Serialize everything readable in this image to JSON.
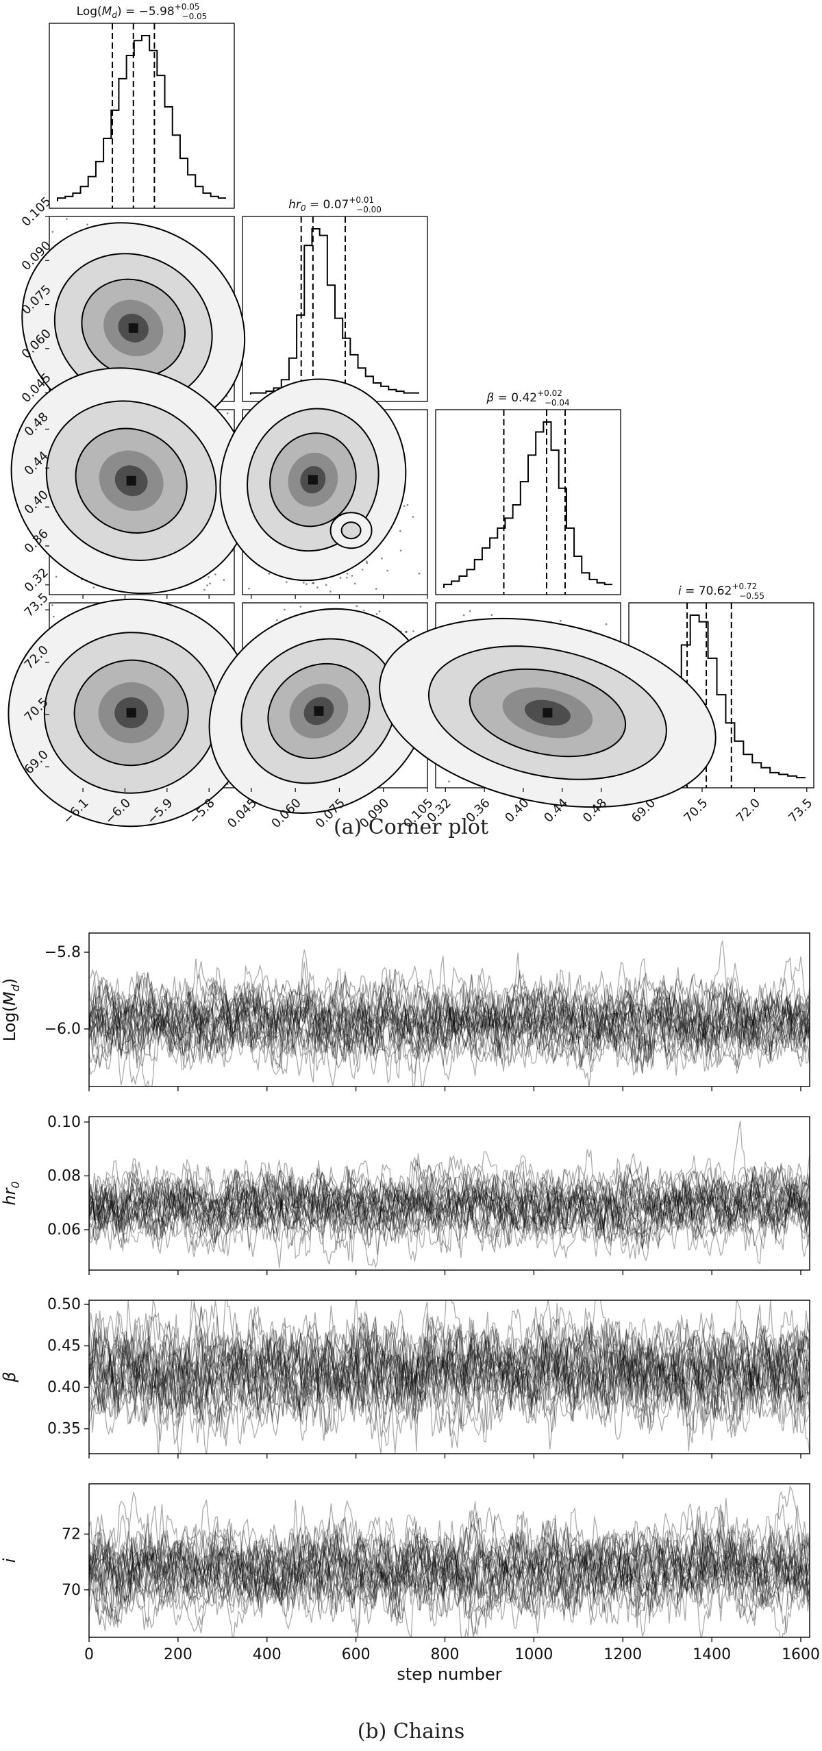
{
  "corner_caption": "(a) Corner plot",
  "chains_caption": "(b) Chains",
  "chart_data": [
    {
      "type": "corner",
      "title": "Corner plot",
      "parameters": [
        {
          "key": "logMd",
          "title_main": "Log(",
          "title_sym": "M",
          "title_sub": "d",
          "title_rest": ") = −5.98",
          "up": "+0.05",
          "down": "−0.05",
          "median": -5.98,
          "q16": -6.03,
          "q84": -5.93,
          "range": [
            -6.18,
            -5.74
          ],
          "ticks": [
            -6.1,
            -6.0,
            -5.9,
            -5.8
          ],
          "tick_labels": [
            "−6.1",
            "−6.0",
            "−5.9",
            "−5.8"
          ],
          "hist": [
            2,
            3,
            5,
            9,
            15,
            24,
            38,
            55,
            74,
            88,
            97,
            100,
            91,
            76,
            57,
            40,
            26,
            16,
            9,
            5,
            3,
            2
          ]
        },
        {
          "key": "hr0",
          "title_main": "",
          "title_sym": "hr",
          "title_sub": "0",
          "title_rest": " = 0.07",
          "up": "+0.01",
          "down": "−0.00",
          "median": 0.066,
          "q16": 0.062,
          "q84": 0.077,
          "range": [
            0.042,
            0.105
          ],
          "ticks": [
            0.045,
            0.06,
            0.075,
            0.09,
            0.105
          ],
          "tick_labels": [
            "0.045",
            "0.060",
            "0.075",
            "0.090",
            "0.105"
          ],
          "hist": [
            1,
            1,
            2,
            4,
            9,
            22,
            48,
            90,
            100,
            96,
            66,
            46,
            34,
            24,
            16,
            11,
            7,
            5,
            3,
            2,
            1,
            1
          ]
        },
        {
          "key": "beta",
          "title_main": "",
          "title_sym": "β",
          "title_sub": "",
          "title_rest": " = 0.42",
          "up": "+0.02",
          "down": "−0.04",
          "median": 0.424,
          "q16": 0.38,
          "q84": 0.443,
          "range": [
            0.31,
            0.5
          ],
          "ticks": [
            0.32,
            0.36,
            0.4,
            0.44,
            0.48
          ],
          "tick_labels": [
            "0.32",
            "0.36",
            "0.40",
            "0.44",
            "0.48"
          ],
          "hist": [
            2,
            4,
            7,
            11,
            17,
            24,
            30,
            36,
            42,
            50,
            64,
            80,
            94,
            100,
            83,
            60,
            36,
            19,
            9,
            5,
            3,
            2
          ]
        },
        {
          "key": "inc",
          "title_main": "",
          "title_sym": "i",
          "title_sub": "",
          "title_rest": " = 70.62",
          "up": "+0.72",
          "down": "−0.55",
          "median": 70.62,
          "q16": 70.07,
          "q84": 71.34,
          "range": [
            68.4,
            73.7
          ],
          "ticks": [
            69.0,
            70.5,
            72.0,
            73.5
          ],
          "tick_labels": [
            "69.0",
            "70.5",
            "72.0",
            "73.5"
          ],
          "hist": [
            3,
            6,
            13,
            28,
            52,
            82,
            100,
            96,
            74,
            52,
            35,
            24,
            16,
            11,
            8,
            5,
            4,
            3,
            2
          ]
        }
      ],
      "contours": {
        "1_0": {
          "center": [
            -5.98,
            0.067
          ],
          "spread": [
            0.07,
            0.011
          ],
          "rho": -0.55,
          "blob2": null
        },
        "2_0": {
          "center": [
            -5.985,
            0.427
          ],
          "spread": [
            0.075,
            0.035
          ],
          "rho": -0.5,
          "blob2": null
        },
        "2_1": {
          "center": [
            0.066,
            0.428
          ],
          "spread": [
            0.008,
            0.03
          ],
          "rho": -0.3,
          "blob2": [
            0.079,
            0.376
          ]
        },
        "3_0": {
          "center": [
            -5.985,
            70.55
          ],
          "spread": [
            0.075,
            0.85
          ],
          "rho": 0.05,
          "blob2": null
        },
        "3_1": {
          "center": [
            0.068,
            70.6
          ],
          "spread": [
            0.01,
            0.9
          ],
          "rho": 0.6,
          "blob2": null
        },
        "3_2": {
          "center": [
            0.425,
            70.55
          ],
          "spread": [
            0.045,
            0.75
          ],
          "rho": -0.35,
          "blob2": null
        }
      }
    },
    {
      "type": "line",
      "title": "Chains",
      "xlabel": "step number",
      "xlim": [
        0,
        1620
      ],
      "x_ticks": [
        0,
        200,
        400,
        600,
        800,
        1000,
        1200,
        1400,
        1600
      ],
      "x_tick_labels": [
        "0",
        "200",
        "400",
        "600",
        "800",
        "1000",
        "1200",
        "1400",
        "1600"
      ],
      "walkers": 24,
      "steps": 1620,
      "panels": [
        {
          "key": "logMd",
          "ylabel_main": "Log(",
          "ylabel_sym": "M",
          "ylabel_sub": "d",
          "ylabel_rest": ")",
          "ylim": [
            -6.15,
            -5.75
          ],
          "center": -5.98,
          "sigma": 0.05,
          "ticks": [
            -6.0,
            -5.8
          ],
          "tick_labels": [
            "−6.0",
            "−5.8"
          ]
        },
        {
          "key": "hr0",
          "ylabel_main": "",
          "ylabel_sym": "hr",
          "ylabel_sub": "0",
          "ylabel_rest": "",
          "ylim": [
            0.045,
            0.102
          ],
          "center": 0.069,
          "sigma": 0.0065,
          "ticks": [
            0.06,
            0.08,
            0.1
          ],
          "tick_labels": [
            "0.06",
            "0.08",
            "0.10"
          ]
        },
        {
          "key": "beta",
          "ylabel_main": "",
          "ylabel_sym": "β",
          "ylabel_sub": "",
          "ylabel_rest": "",
          "ylim": [
            0.32,
            0.505
          ],
          "center": 0.418,
          "sigma": 0.03,
          "ticks": [
            0.35,
            0.4,
            0.45,
            0.5
          ],
          "tick_labels": [
            "0.35",
            "0.40",
            "0.45",
            "0.50"
          ]
        },
        {
          "key": "inc",
          "ylabel_main": "",
          "ylabel_sym": "i",
          "ylabel_sub": "",
          "ylabel_rest": "",
          "ylim": [
            68.3,
            73.8
          ],
          "center": 70.7,
          "sigma": 0.75,
          "ticks": [
            70,
            72
          ],
          "tick_labels": [
            "70",
            "72"
          ]
        }
      ]
    }
  ]
}
